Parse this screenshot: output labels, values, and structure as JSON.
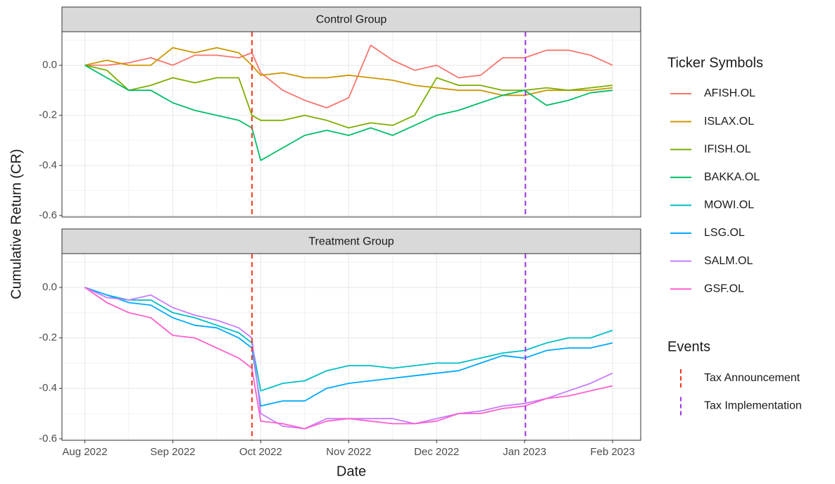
{
  "chart_data": {
    "type": "line",
    "x_label": "Date",
    "y_label": "Cumulative Return (CR)",
    "legend_title": "Ticker Symbols",
    "events_title": "Events",
    "grid": true,
    "xlim": [
      -0.26,
      6.32
    ],
    "xticks": [
      {
        "value": 0,
        "label": "Aug 2022"
      },
      {
        "value": 1,
        "label": "Sep 2022"
      },
      {
        "value": 2,
        "label": "Oct 2022"
      },
      {
        "value": 3,
        "label": "Nov 2022"
      },
      {
        "value": 4,
        "label": "Dec 2022"
      },
      {
        "value": 5,
        "label": "Jan 2023"
      },
      {
        "value": 6,
        "label": "Feb 2023"
      }
    ],
    "ylim": [
      -0.606,
      0.134
    ],
    "yticks": [
      {
        "value": 0,
        "label": "0.0"
      },
      -0.2,
      -0.4,
      -0.6
    ],
    "events": [
      {
        "name": "Tax Announcement",
        "color": "#f8331c",
        "x": 1.9
      },
      {
        "name": "Tax Implementation",
        "color": "#a035e8",
        "x": 5.01
      }
    ],
    "x": [
      0,
      0.25,
      0.5,
      0.75,
      1,
      1.25,
      1.5,
      1.75,
      1.9,
      2,
      2.25,
      2.5,
      2.75,
      3,
      3.25,
      3.5,
      3.75,
      4,
      4.25,
      4.5,
      4.75,
      5,
      5.25,
      5.5,
      5.75,
      6
    ],
    "panels": [
      {
        "title": "Control Group",
        "series": [
          {
            "name": "AFISH.OL",
            "color": "#F8766D",
            "values": [
              0,
              0,
              0.01,
              0.03,
              0.0,
              0.04,
              0.04,
              0.03,
              0.05,
              -0.03,
              -0.1,
              -0.14,
              -0.17,
              -0.13,
              0.08,
              0.02,
              -0.02,
              0.0,
              -0.05,
              -0.04,
              0.03,
              0.03,
              0.06,
              0.06,
              0.04,
              0.0
            ]
          },
          {
            "name": "ISLAX.OL",
            "color": "#CD9600",
            "values": [
              0,
              0.02,
              0.0,
              0.0,
              0.07,
              0.05,
              0.07,
              0.05,
              0.0,
              -0.04,
              -0.03,
              -0.05,
              -0.05,
              -0.04,
              -0.05,
              -0.06,
              -0.08,
              -0.09,
              -0.1,
              -0.1,
              -0.12,
              -0.12,
              -0.1,
              -0.1,
              -0.1,
              -0.09
            ]
          },
          {
            "name": "IFISH.OL",
            "color": "#7CAE00",
            "values": [
              0,
              -0.02,
              -0.1,
              -0.08,
              -0.05,
              -0.07,
              -0.05,
              -0.05,
              -0.2,
              -0.22,
              -0.22,
              -0.2,
              -0.22,
              -0.25,
              -0.23,
              -0.24,
              -0.2,
              -0.05,
              -0.08,
              -0.08,
              -0.1,
              -0.1,
              -0.09,
              -0.1,
              -0.09,
              -0.08
            ]
          },
          {
            "name": "BAKKA.OL",
            "color": "#00BE67",
            "values": [
              0,
              -0.05,
              -0.1,
              -0.1,
              -0.15,
              -0.18,
              -0.2,
              -0.22,
              -0.25,
              -0.38,
              -0.33,
              -0.28,
              -0.26,
              -0.28,
              -0.25,
              -0.28,
              -0.24,
              -0.2,
              -0.18,
              -0.15,
              -0.12,
              -0.1,
              -0.16,
              -0.14,
              -0.11,
              -0.1
            ]
          }
        ]
      },
      {
        "title": "Treatment Group",
        "series": [
          {
            "name": "MOWI.OL",
            "color": "#00BFC4",
            "values": [
              0,
              -0.03,
              -0.05,
              -0.05,
              -0.1,
              -0.12,
              -0.15,
              -0.18,
              -0.22,
              -0.41,
              -0.38,
              -0.37,
              -0.33,
              -0.31,
              -0.31,
              -0.32,
              -0.31,
              -0.3,
              -0.3,
              -0.28,
              -0.26,
              -0.25,
              -0.22,
              -0.2,
              -0.2,
              -0.17
            ]
          },
          {
            "name": "LSG.OL",
            "color": "#00A9FF",
            "values": [
              0,
              -0.03,
              -0.06,
              -0.07,
              -0.12,
              -0.15,
              -0.16,
              -0.2,
              -0.24,
              -0.47,
              -0.45,
              -0.45,
              -0.4,
              -0.38,
              -0.37,
              -0.36,
              -0.35,
              -0.34,
              -0.33,
              -0.3,
              -0.27,
              -0.28,
              -0.25,
              -0.24,
              -0.24,
              -0.22
            ]
          },
          {
            "name": "SALM.OL",
            "color": "#C77CFF",
            "values": [
              0,
              -0.04,
              -0.05,
              -0.03,
              -0.08,
              -0.11,
              -0.13,
              -0.16,
              -0.2,
              -0.5,
              -0.55,
              -0.56,
              -0.52,
              -0.52,
              -0.52,
              -0.52,
              -0.54,
              -0.52,
              -0.5,
              -0.49,
              -0.47,
              -0.46,
              -0.44,
              -0.41,
              -0.38,
              -0.34
            ]
          },
          {
            "name": "GSF.OL",
            "color": "#FF61CC",
            "values": [
              0,
              -0.06,
              -0.1,
              -0.12,
              -0.19,
              -0.2,
              -0.24,
              -0.28,
              -0.32,
              -0.53,
              -0.54,
              -0.56,
              -0.53,
              -0.52,
              -0.53,
              -0.54,
              -0.54,
              -0.53,
              -0.5,
              -0.5,
              -0.48,
              -0.47,
              -0.44,
              -0.43,
              -0.41,
              -0.39
            ]
          }
        ]
      }
    ]
  }
}
